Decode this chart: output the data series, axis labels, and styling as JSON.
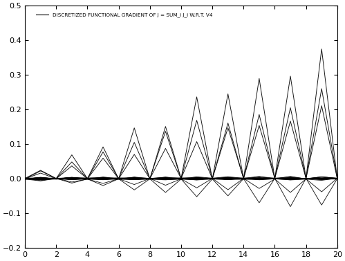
{
  "legend_label": "DISCRETIZED FUNCTIONAL GRADIENT OF J = SUM_i J_i W.R.T. V4",
  "xlim": [
    0,
    20
  ],
  "ylim": [
    -0.2,
    0.5
  ],
  "xticks": [
    0,
    2,
    4,
    6,
    8,
    10,
    12,
    14,
    16,
    18,
    20
  ],
  "yticks": [
    -0.2,
    -0.1,
    0.0,
    0.1,
    0.2,
    0.3,
    0.4,
    0.5
  ],
  "background_color": "#ffffff",
  "line_color": "#000000",
  "figsize": [
    4.99,
    3.77
  ],
  "dpi": 100
}
